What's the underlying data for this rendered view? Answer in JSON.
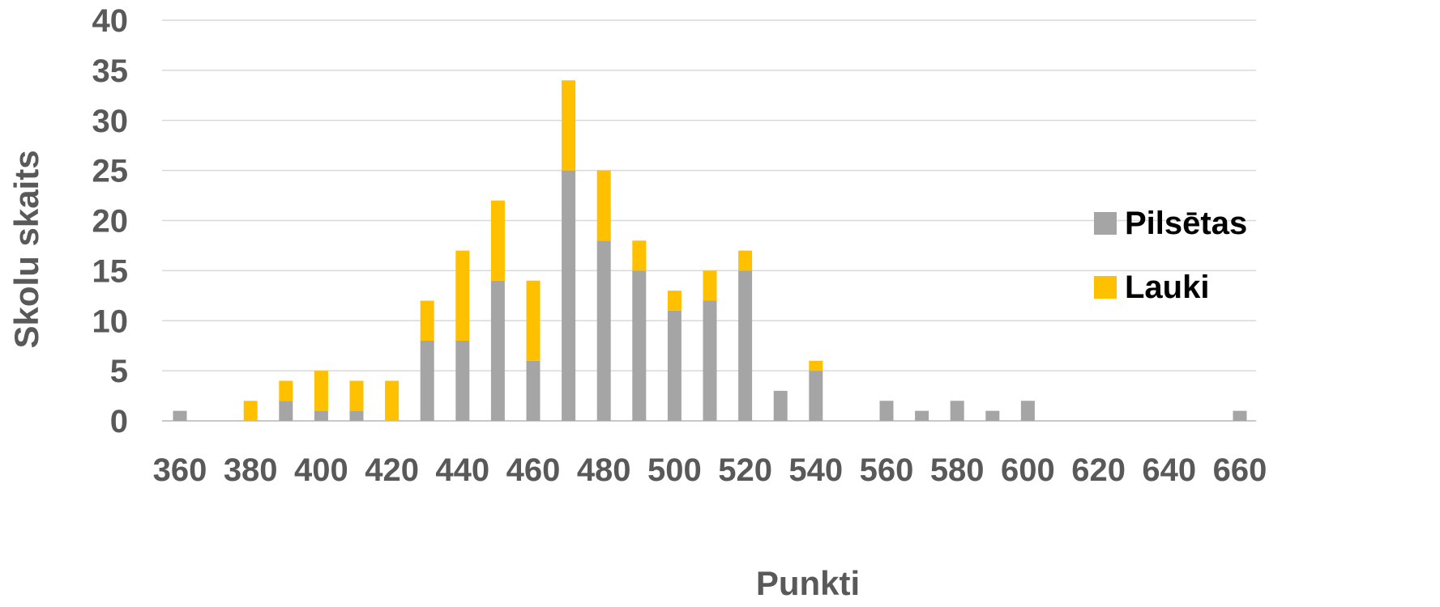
{
  "chart_data": {
    "type": "bar",
    "stacked": true,
    "title": "",
    "xlabel": "Punkti",
    "ylabel": "Skolu skaits",
    "xlim": [
      360,
      660
    ],
    "ylim": [
      0,
      40
    ],
    "x_ticks": [
      "360",
      "380",
      "400",
      "420",
      "440",
      "460",
      "480",
      "500",
      "520",
      "540",
      "560",
      "580",
      "600",
      "620",
      "640",
      "660"
    ],
    "y_ticks": [
      "0",
      "5",
      "10",
      "15",
      "20",
      "25",
      "30",
      "35",
      "40"
    ],
    "grid": "horizontal",
    "legend_position": "right",
    "x": [
      360,
      370,
      380,
      390,
      400,
      410,
      420,
      430,
      440,
      450,
      460,
      470,
      480,
      490,
      500,
      510,
      520,
      530,
      540,
      550,
      560,
      570,
      580,
      590,
      600,
      610,
      620,
      630,
      640,
      650,
      660
    ],
    "series": [
      {
        "name": "Pilsētas",
        "color": "#a5a5a5",
        "values": [
          1,
          0,
          0,
          2,
          1,
          1,
          0,
          8,
          8,
          14,
          6,
          25,
          18,
          15,
          11,
          12,
          15,
          3,
          5,
          0,
          2,
          1,
          2,
          1,
          2,
          0,
          0,
          0,
          0,
          0,
          1
        ]
      },
      {
        "name": "Lauki",
        "color": "#ffc000",
        "values": [
          0,
          0,
          2,
          2,
          4,
          3,
          4,
          4,
          9,
          8,
          8,
          9,
          7,
          3,
          2,
          3,
          2,
          0,
          1,
          0,
          0,
          0,
          0,
          0,
          0,
          0,
          0,
          0,
          0,
          0,
          0
        ]
      }
    ]
  }
}
